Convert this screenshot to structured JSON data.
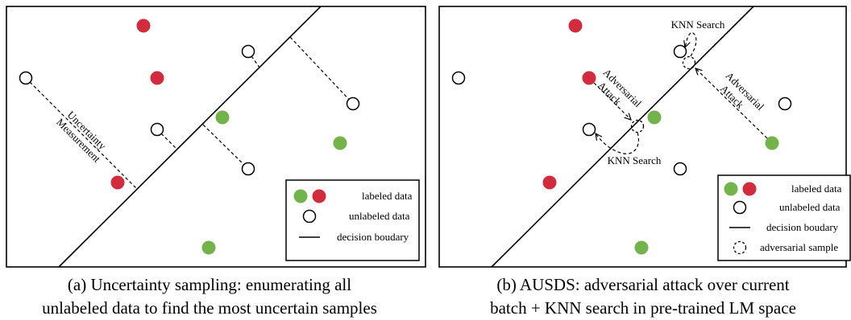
{
  "panel_a": {
    "uncertainty_label_line1": "Uncertainty",
    "uncertainty_label_line2": "Measurement",
    "legend": {
      "labeled": "labeled data",
      "unlabeled": "unlabeled data",
      "boundary": "decision boudary"
    },
    "caption_line1": "(a) Uncertainty sampling: enumerating all",
    "caption_line2": "unlabeled data to find the most uncertain samples"
  },
  "panel_b": {
    "knn_top": "KNN Search",
    "knn_bottom": "KNN Search",
    "attack_left_line1": "Adversarial",
    "attack_left_line2": "Attack",
    "attack_right_line1": "Adversarial",
    "attack_right_line2": "Attack",
    "legend": {
      "labeled": "labeled data",
      "unlabeled": "unlabeled data",
      "boundary": "decision boudary",
      "adversarial": "adversarial sample"
    },
    "caption_line1": "(b) AUSDS: adversarial attack over current",
    "caption_line2": "batch + KNN search in pre-trained LM space"
  },
  "colors": {
    "red": "#d22b3c",
    "green": "#72b34a"
  }
}
